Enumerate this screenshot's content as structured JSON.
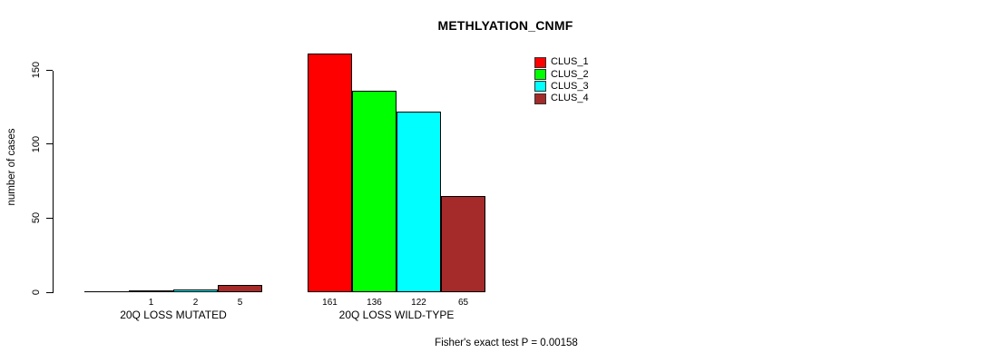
{
  "chart_data": {
    "type": "bar",
    "title": "METHLYATION_CNMF",
    "ylabel": "number of cases",
    "xlabel": "",
    "ylim": [
      0,
      150
    ],
    "yticks": [
      0,
      50,
      100,
      150
    ],
    "grid": false,
    "legend_position": "top-right",
    "groups": [
      "20Q LOSS MUTATED",
      "20Q LOSS WILD-TYPE"
    ],
    "series": [
      {
        "name": "CLUS_1",
        "color": "#ff0000",
        "values": [
          0,
          161
        ]
      },
      {
        "name": "CLUS_2",
        "color": "#00ff00",
        "values": [
          1,
          136
        ]
      },
      {
        "name": "CLUS_3",
        "color": "#00ffff",
        "values": [
          2,
          122
        ]
      },
      {
        "name": "CLUS_4",
        "color": "#a52a2a",
        "values": [
          5,
          65
        ]
      }
    ],
    "bar_labels": [
      [
        "",
        "1",
        "2",
        "5"
      ],
      [
        "161",
        "136",
        "122",
        "65"
      ]
    ],
    "annotation": "Fisher's exact test P = 0.00158"
  }
}
